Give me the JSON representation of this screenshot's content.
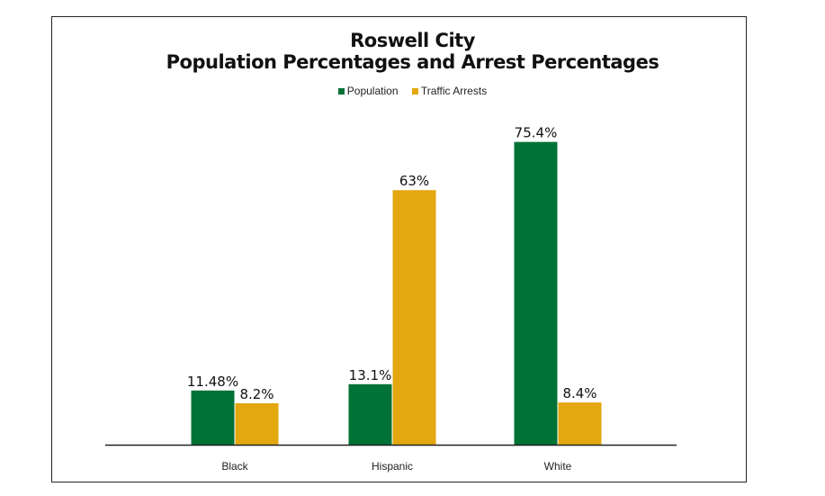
{
  "chart_data": {
    "type": "bar",
    "title": "Roswell City",
    "subtitle": "Population Percentages and Arrest Percentages",
    "categories": [
      "Black",
      "Hispanic",
      "White"
    ],
    "series": [
      {
        "name": "Population",
        "values": [
          11.48,
          13.1,
          75.4
        ],
        "labels": [
          "11.48%",
          "13.1%",
          "75.4%"
        ],
        "color": "#007236"
      },
      {
        "name": "Traffic Arrests",
        "values": [
          8.2,
          63,
          8.4
        ],
        "labels": [
          "8.2%",
          "63%",
          "8.4%"
        ],
        "color": "#e3a70f"
      }
    ],
    "legend": "top",
    "grid": false,
    "xlabel": "",
    "ylabel": ""
  }
}
